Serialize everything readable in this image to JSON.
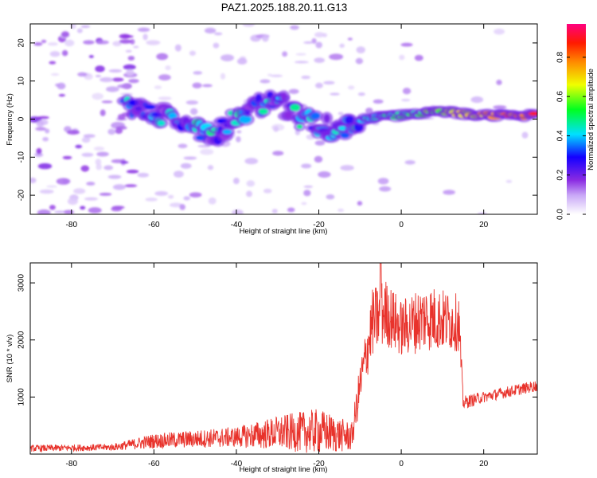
{
  "title": "PAZ1.2025.188.20.11.G13",
  "colorbar": {
    "label": "Normalized spectral amplitude",
    "ticks": [
      "0.0",
      "0.2",
      "0.4",
      "0.6",
      "0.8"
    ],
    "range": [
      0,
      0.97
    ],
    "colormap": "rainbow (white → violet → blue → cyan → green → yellow → orange → red → magenta)"
  },
  "chart_data": [
    {
      "type": "heatmap",
      "xlabel": "Height of straight line (km)",
      "ylabel": "Frequency (Hz)",
      "xlim": [
        -90,
        33
      ],
      "ylim": [
        -25,
        25
      ],
      "xticks": [
        -80,
        -60,
        -40,
        -20,
        0,
        20
      ],
      "yticks": [
        -20,
        -10,
        0,
        10,
        20
      ],
      "features": {
        "signal_ridge": [
          {
            "x": -65,
            "f": 3
          },
          {
            "x": -55,
            "f": 0
          },
          {
            "x": -45,
            "f": -4
          },
          {
            "x": -40,
            "f": 1
          },
          {
            "x": -30,
            "f": 5
          },
          {
            "x": -25,
            "f": 0
          },
          {
            "x": -15,
            "f": -3
          },
          {
            "x": -10,
            "f": 0
          },
          {
            "x": 0,
            "f": 1
          },
          {
            "x": 10,
            "f": 2
          },
          {
            "x": 20,
            "f": 1
          },
          {
            "x": 33,
            "f": 1
          }
        ],
        "ridge_peak_amplitude": 0.95,
        "noise_region_x": [
          -90,
          -65
        ]
      }
    },
    {
      "type": "line",
      "xlabel": "Height of straight line (km)",
      "ylabel": "SNR (10 * v/v)",
      "xlim": [
        -90,
        33
      ],
      "ylim": [
        0,
        3350
      ],
      "xticks": [
        -80,
        -60,
        -40,
        -20,
        0,
        20
      ],
      "yticks": [
        1000,
        2000,
        3000
      ],
      "color": "#e8322b",
      "series_envelope": [
        {
          "x": -90,
          "mean": 100,
          "amp": 60
        },
        {
          "x": -70,
          "mean": 120,
          "amp": 60
        },
        {
          "x": -60,
          "mean": 230,
          "amp": 130
        },
        {
          "x": -40,
          "mean": 300,
          "amp": 180
        },
        {
          "x": -30,
          "mean": 370,
          "amp": 300
        },
        {
          "x": -20,
          "mean": 400,
          "amp": 400
        },
        {
          "x": -12,
          "mean": 300,
          "amp": 250
        },
        {
          "x": -10,
          "mean": 1200,
          "amp": 400
        },
        {
          "x": -7,
          "mean": 2300,
          "amp": 600
        },
        {
          "x": -4,
          "mean": 2500,
          "amp": 600
        },
        {
          "x": 0,
          "mean": 2200,
          "amp": 500
        },
        {
          "x": 6,
          "mean": 2400,
          "amp": 600
        },
        {
          "x": 14,
          "mean": 2300,
          "amp": 500
        },
        {
          "x": 15,
          "mean": 900,
          "amp": 120
        },
        {
          "x": 20,
          "mean": 1000,
          "amp": 100
        },
        {
          "x": 33,
          "mean": 1200,
          "amp": 100
        }
      ],
      "peak": {
        "x": -5,
        "y": 3350
      }
    }
  ]
}
